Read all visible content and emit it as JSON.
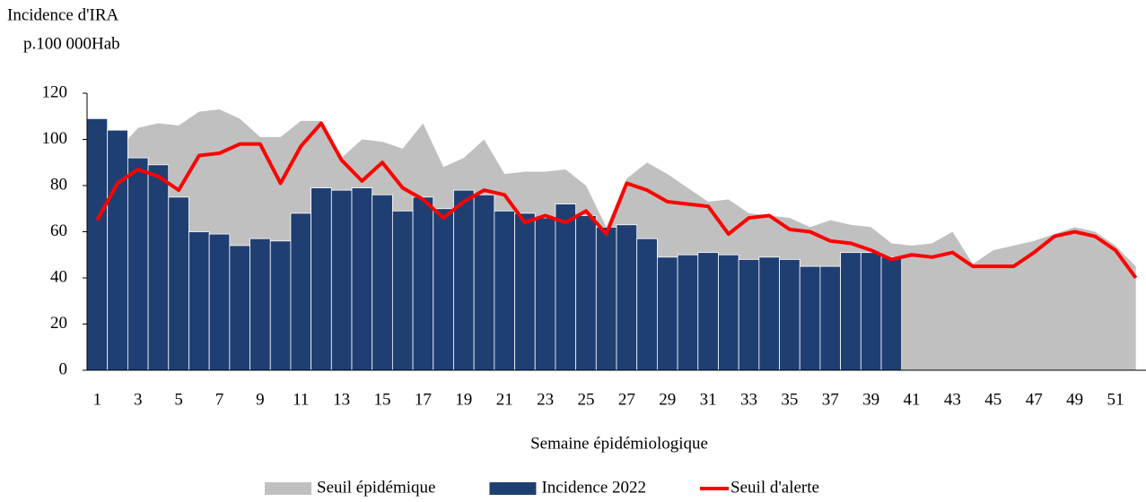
{
  "chart_data": {
    "type": "combo",
    "ylabel": [
      "Incidence d'IRA",
      "p.100 000Hab"
    ],
    "xlabel": "Semaine épidémiologique",
    "categories": [
      1,
      null,
      3,
      null,
      5,
      null,
      7,
      null,
      9,
      null,
      11,
      null,
      13,
      null,
      15,
      null,
      17,
      null,
      19,
      null,
      21,
      null,
      23,
      null,
      25,
      null,
      27,
      null,
      29,
      null,
      31,
      null,
      33,
      null,
      35,
      null,
      37,
      null,
      39,
      null,
      41,
      null,
      43,
      null,
      45,
      null,
      47,
      null,
      49,
      null,
      51,
      null
    ],
    "series": [
      {
        "name": "Seuil épidémique",
        "type": "area",
        "color": "#c0c0c0",
        "values": [
          95,
          95,
          105,
          107,
          106,
          112,
          113,
          109,
          101,
          101,
          108,
          108,
          92,
          100,
          99,
          96,
          107,
          88,
          92,
          100,
          85,
          86,
          86,
          87,
          80,
          62,
          83,
          90,
          85,
          79,
          73,
          74,
          68,
          67,
          66,
          62,
          65,
          63,
          62,
          55,
          54,
          55,
          60,
          46,
          52,
          54,
          56,
          59,
          62,
          60,
          54,
          45
        ]
      },
      {
        "name": "Incidence 2022",
        "type": "bar",
        "color": "#1f3f73",
        "values": [
          109,
          104,
          92,
          89,
          75,
          60,
          59,
          54,
          57,
          56,
          68,
          79,
          78,
          79,
          76,
          69,
          75,
          70,
          78,
          76,
          69,
          68,
          66,
          72,
          67,
          62,
          63,
          57,
          49,
          50,
          51,
          50,
          48,
          49,
          48,
          45,
          45,
          51,
          51,
          49,
          null,
          null,
          null,
          null,
          null,
          null,
          null,
          null,
          null,
          null,
          null,
          null
        ]
      },
      {
        "name": "Seuil d'alerte",
        "type": "line",
        "color": "#ff0000",
        "values": [
          65,
          81,
          87,
          84,
          78,
          93,
          94,
          98,
          98,
          81,
          97,
          107,
          91,
          82,
          90,
          79,
          74,
          66,
          73,
          78,
          76,
          64,
          67,
          64,
          69,
          59,
          81,
          78,
          73,
          72,
          71,
          59,
          66,
          67,
          61,
          60,
          56,
          55,
          52,
          48,
          50,
          49,
          51,
          45,
          45,
          45,
          51,
          58,
          60,
          58,
          52,
          40
        ]
      }
    ],
    "ylim": [
      0,
      120
    ],
    "yticks": [
      0,
      20,
      40,
      60,
      80,
      100,
      120
    ],
    "legend": "bottom"
  }
}
